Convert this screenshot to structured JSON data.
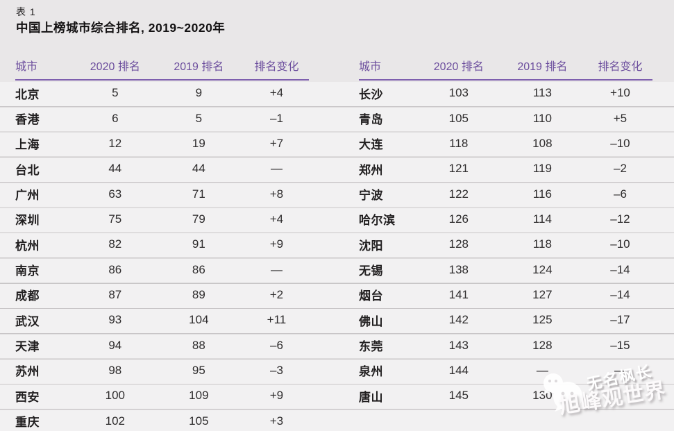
{
  "title": {
    "table_label": "表 1",
    "heading": "中国上榜城市综合排名, 2019~2020年"
  },
  "columns": [
    "城市",
    "2020 排名",
    "2019 排名",
    "排名变化"
  ],
  "tables": {
    "left": [
      [
        "北京",
        "5",
        "9",
        "+4"
      ],
      [
        "香港",
        "6",
        "5",
        "–1"
      ],
      [
        "上海",
        "12",
        "19",
        "+7"
      ],
      [
        "台北",
        "44",
        "44",
        "—"
      ],
      [
        "广州",
        "63",
        "71",
        "+8"
      ],
      [
        "深圳",
        "75",
        "79",
        "+4"
      ],
      [
        "杭州",
        "82",
        "91",
        "+9"
      ],
      [
        "南京",
        "86",
        "86",
        "—"
      ],
      [
        "成都",
        "87",
        "89",
        "+2"
      ],
      [
        "武汉",
        "93",
        "104",
        "+11"
      ],
      [
        "天津",
        "94",
        "88",
        "–6"
      ],
      [
        "苏州",
        "98",
        "95",
        "–3"
      ],
      [
        "西安",
        "100",
        "109",
        "+9"
      ],
      [
        "重庆",
        "102",
        "105",
        "+3"
      ]
    ],
    "right": [
      [
        "长沙",
        "103",
        "113",
        "+10"
      ],
      [
        "青岛",
        "105",
        "110",
        "+5"
      ],
      [
        "大连",
        "118",
        "108",
        "–10"
      ],
      [
        "郑州",
        "121",
        "119",
        "–2"
      ],
      [
        "宁波",
        "122",
        "116",
        "–6"
      ],
      [
        "哈尔滨",
        "126",
        "114",
        "–12"
      ],
      [
        "沈阳",
        "128",
        "118",
        "–10"
      ],
      [
        "无锡",
        "138",
        "124",
        "–14"
      ],
      [
        "烟台",
        "141",
        "127",
        "–14"
      ],
      [
        "佛山",
        "142",
        "125",
        "–17"
      ],
      [
        "东莞",
        "143",
        "128",
        "–15"
      ],
      [
        "泉州",
        "144",
        "—",
        "—"
      ],
      [
        "唐山",
        "145",
        "130",
        ""
      ]
    ]
  },
  "watermark": {
    "line1": "无名枫长",
    "line2": "旭峰观世界",
    "icon": "wechat-bubbles-icon"
  },
  "colors": {
    "background": "#e9e7e8",
    "header_purple": "#6d4f9e",
    "divider_purple": "#7e5fae",
    "row_line": "#c9c6c8",
    "body_text": "#2e2c2d"
  }
}
